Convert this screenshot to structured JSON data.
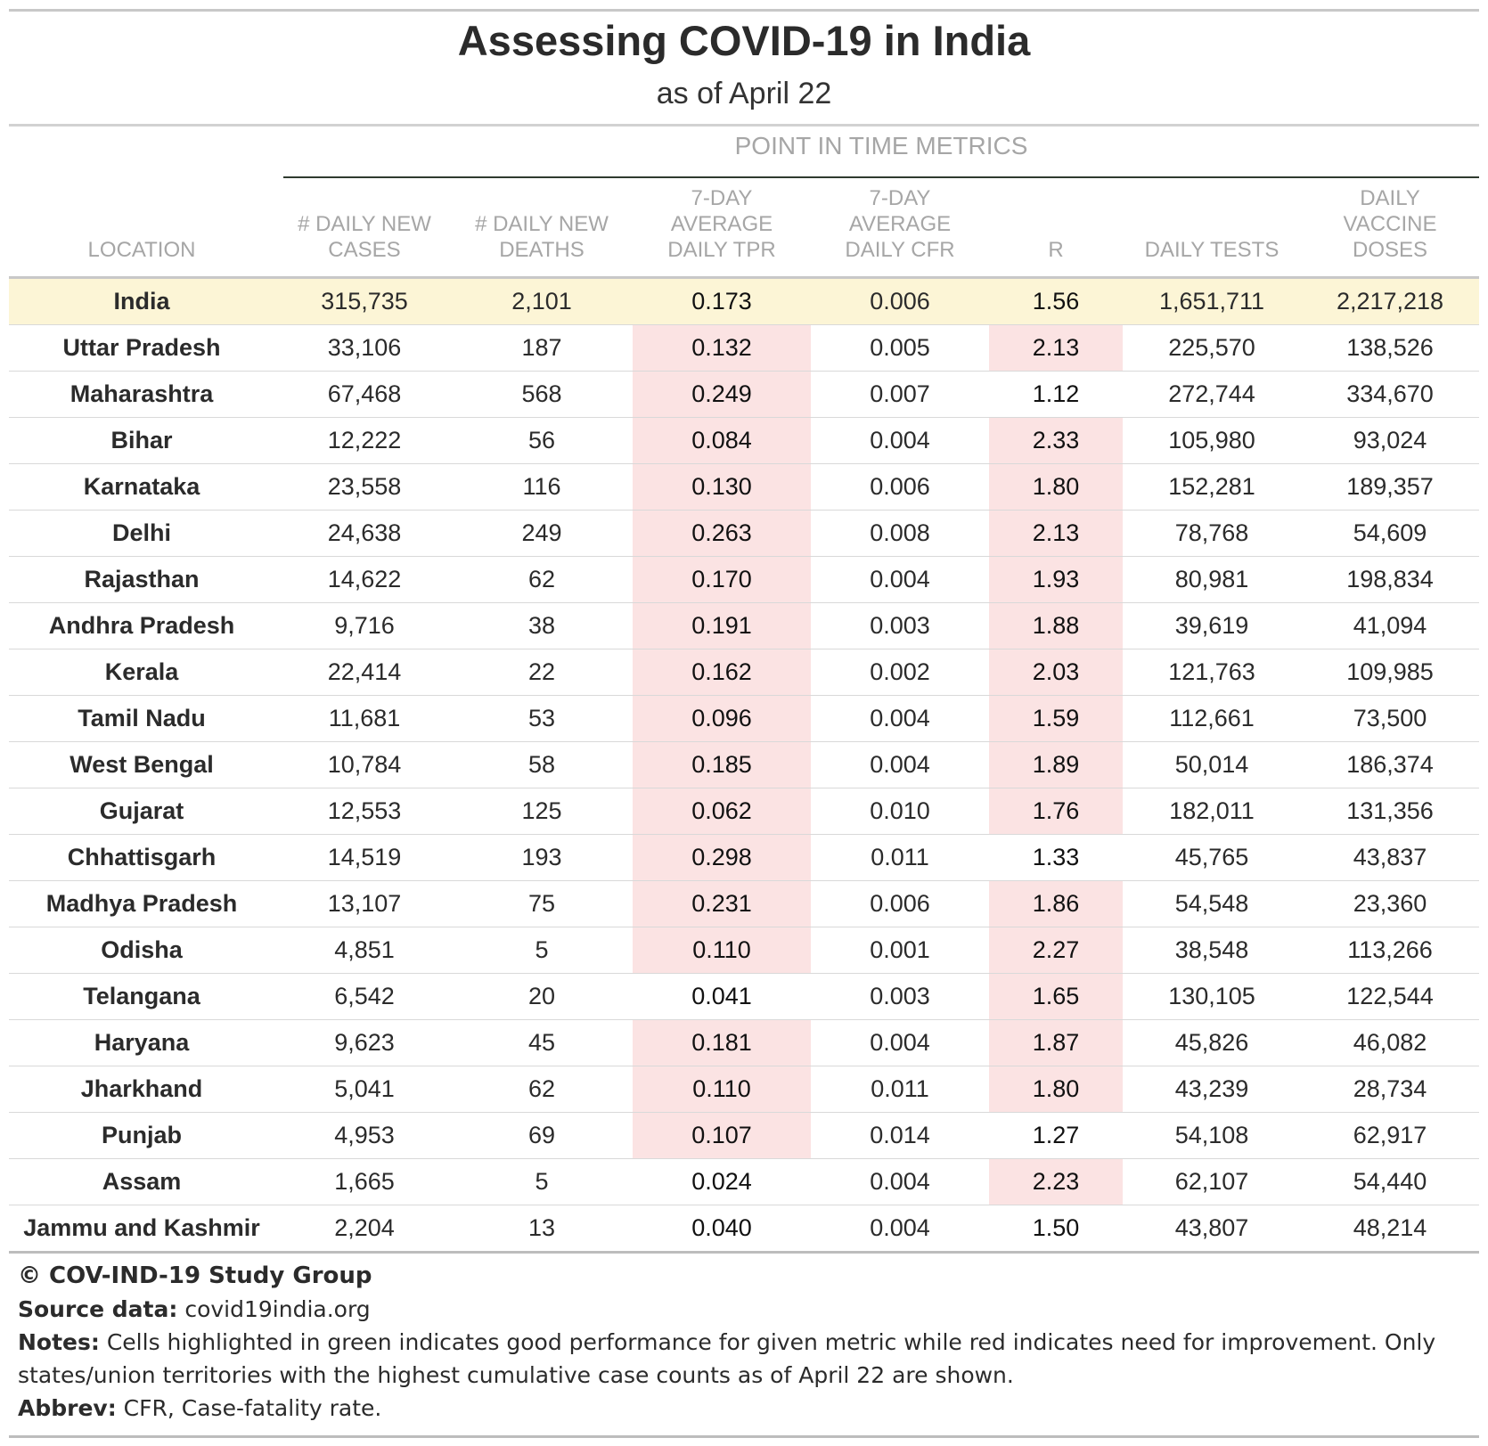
{
  "chart_data": {
    "type": "table",
    "title": "Assessing COVID-19 in India",
    "subtitle": "as of April 22",
    "spanner_label": "POINT IN TIME METRICS",
    "columns": [
      "LOCATION",
      "# DAILY NEW\nCASES",
      "# DAILY NEW\nDEATHS",
      "7-DAY\nAVERAGE\nDAILY TPR",
      "7-DAY\nAVERAGE\nDAILY CFR",
      "R",
      "DAILY TESTS",
      "DAILY\nVACCINE\nDOSES"
    ],
    "rows": [
      {
        "location": "India",
        "cases": "315,735",
        "deaths": "2,101",
        "tpr": "0.173",
        "cfr": "0.006",
        "r": "1.56",
        "tests": "1,651,711",
        "doses": "2,217,218",
        "tpr_red": false,
        "r_red": false
      },
      {
        "location": "Uttar Pradesh",
        "cases": "33,106",
        "deaths": "187",
        "tpr": "0.132",
        "cfr": "0.005",
        "r": "2.13",
        "tests": "225,570",
        "doses": "138,526",
        "tpr_red": true,
        "r_red": true
      },
      {
        "location": "Maharashtra",
        "cases": "67,468",
        "deaths": "568",
        "tpr": "0.249",
        "cfr": "0.007",
        "r": "1.12",
        "tests": "272,744",
        "doses": "334,670",
        "tpr_red": true,
        "r_red": false
      },
      {
        "location": "Bihar",
        "cases": "12,222",
        "deaths": "56",
        "tpr": "0.084",
        "cfr": "0.004",
        "r": "2.33",
        "tests": "105,980",
        "doses": "93,024",
        "tpr_red": true,
        "r_red": true
      },
      {
        "location": "Karnataka",
        "cases": "23,558",
        "deaths": "116",
        "tpr": "0.130",
        "cfr": "0.006",
        "r": "1.80",
        "tests": "152,281",
        "doses": "189,357",
        "tpr_red": true,
        "r_red": true
      },
      {
        "location": "Delhi",
        "cases": "24,638",
        "deaths": "249",
        "tpr": "0.263",
        "cfr": "0.008",
        "r": "2.13",
        "tests": "78,768",
        "doses": "54,609",
        "tpr_red": true,
        "r_red": true
      },
      {
        "location": "Rajasthan",
        "cases": "14,622",
        "deaths": "62",
        "tpr": "0.170",
        "cfr": "0.004",
        "r": "1.93",
        "tests": "80,981",
        "doses": "198,834",
        "tpr_red": true,
        "r_red": true
      },
      {
        "location": "Andhra Pradesh",
        "cases": "9,716",
        "deaths": "38",
        "tpr": "0.191",
        "cfr": "0.003",
        "r": "1.88",
        "tests": "39,619",
        "doses": "41,094",
        "tpr_red": true,
        "r_red": true
      },
      {
        "location": "Kerala",
        "cases": "22,414",
        "deaths": "22",
        "tpr": "0.162",
        "cfr": "0.002",
        "r": "2.03",
        "tests": "121,763",
        "doses": "109,985",
        "tpr_red": true,
        "r_red": true
      },
      {
        "location": "Tamil Nadu",
        "cases": "11,681",
        "deaths": "53",
        "tpr": "0.096",
        "cfr": "0.004",
        "r": "1.59",
        "tests": "112,661",
        "doses": "73,500",
        "tpr_red": true,
        "r_red": true
      },
      {
        "location": "West Bengal",
        "cases": "10,784",
        "deaths": "58",
        "tpr": "0.185",
        "cfr": "0.004",
        "r": "1.89",
        "tests": "50,014",
        "doses": "186,374",
        "tpr_red": true,
        "r_red": true
      },
      {
        "location": "Gujarat",
        "cases": "12,553",
        "deaths": "125",
        "tpr": "0.062",
        "cfr": "0.010",
        "r": "1.76",
        "tests": "182,011",
        "doses": "131,356",
        "tpr_red": true,
        "r_red": true
      },
      {
        "location": "Chhattisgarh",
        "cases": "14,519",
        "deaths": "193",
        "tpr": "0.298",
        "cfr": "0.011",
        "r": "1.33",
        "tests": "45,765",
        "doses": "43,837",
        "tpr_red": true,
        "r_red": false
      },
      {
        "location": "Madhya Pradesh",
        "cases": "13,107",
        "deaths": "75",
        "tpr": "0.231",
        "cfr": "0.006",
        "r": "1.86",
        "tests": "54,548",
        "doses": "23,360",
        "tpr_red": true,
        "r_red": true
      },
      {
        "location": "Odisha",
        "cases": "4,851",
        "deaths": "5",
        "tpr": "0.110",
        "cfr": "0.001",
        "r": "2.27",
        "tests": "38,548",
        "doses": "113,266",
        "tpr_red": true,
        "r_red": true
      },
      {
        "location": "Telangana",
        "cases": "6,542",
        "deaths": "20",
        "tpr": "0.041",
        "cfr": "0.003",
        "r": "1.65",
        "tests": "130,105",
        "doses": "122,544",
        "tpr_red": false,
        "r_red": true
      },
      {
        "location": "Haryana",
        "cases": "9,623",
        "deaths": "45",
        "tpr": "0.181",
        "cfr": "0.004",
        "r": "1.87",
        "tests": "45,826",
        "doses": "46,082",
        "tpr_red": true,
        "r_red": true
      },
      {
        "location": "Jharkhand",
        "cases": "5,041",
        "deaths": "62",
        "tpr": "0.110",
        "cfr": "0.011",
        "r": "1.80",
        "tests": "43,239",
        "doses": "28,734",
        "tpr_red": true,
        "r_red": true
      },
      {
        "location": "Punjab",
        "cases": "4,953",
        "deaths": "69",
        "tpr": "0.107",
        "cfr": "0.014",
        "r": "1.27",
        "tests": "54,108",
        "doses": "62,917",
        "tpr_red": true,
        "r_red": false
      },
      {
        "location": "Assam",
        "cases": "1,665",
        "deaths": "5",
        "tpr": "0.024",
        "cfr": "0.004",
        "r": "2.23",
        "tests": "62,107",
        "doses": "54,440",
        "tpr_red": false,
        "r_red": true
      },
      {
        "location": "Jammu and Kashmir",
        "cases": "2,204",
        "deaths": "13",
        "tpr": "0.040",
        "cfr": "0.004",
        "r": "1.50",
        "tests": "43,807",
        "doses": "48,214",
        "tpr_red": false,
        "r_red": false
      }
    ],
    "colors": {
      "highlight_row": "#fcf5d6",
      "red_cell": "#fbe3e3"
    }
  },
  "footer": {
    "copyright": "© COV-IND-19 Study Group",
    "source_label": "Source data:",
    "source_value": "covid19india.org",
    "notes_label": "Notes:",
    "notes_text": "Cells highlighted in green indicates good performance for given metric while red indicates need for improvement. Only states/union territories with the highest cumulative case counts as of April 22 are shown.",
    "abbrev_label": "Abbrev:",
    "abbrev_text": "CFR, Case-fatality rate."
  }
}
